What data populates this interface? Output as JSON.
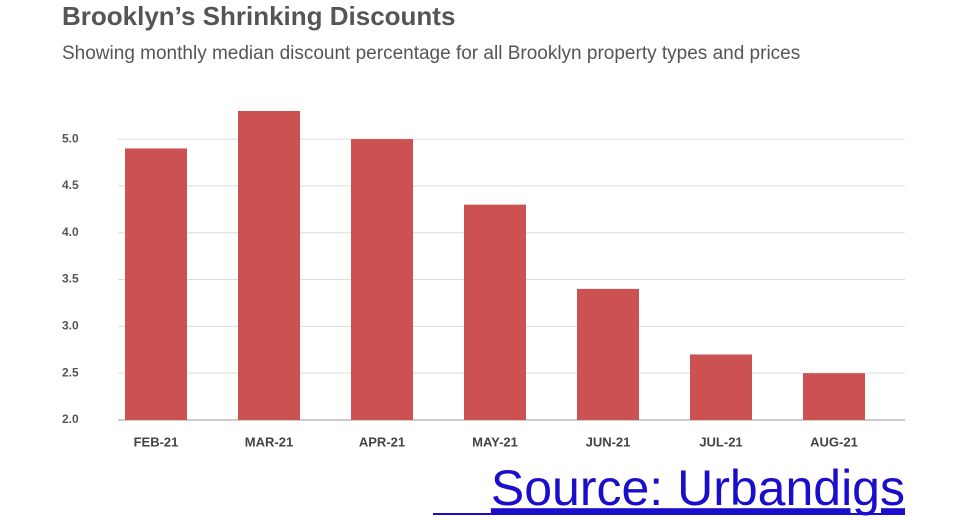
{
  "chart_data": {
    "type": "bar",
    "title": "Brooklyn’s Shrinking Discounts",
    "subtitle": "Showing monthly median discount percentage for all Brooklyn property types and prices",
    "categories": [
      "FEB-21",
      "MAR-21",
      "APR-21",
      "MAY-21",
      "JUN-21",
      "JUL-21",
      "AUG-21"
    ],
    "values": [
      4.9,
      5.3,
      5.0,
      4.3,
      3.4,
      2.7,
      2.5
    ],
    "color": "#cc5252",
    "ylim": [
      2,
      5.3
    ],
    "yticks": [
      {
        "value": 2,
        "label": "2.0"
      },
      2.5,
      {
        "value": 3,
        "label": "3.0"
      },
      3.5,
      {
        "value": 4,
        "label": "4.0"
      },
      4.5,
      {
        "value": 5,
        "label": "5.0"
      }
    ],
    "grid": true,
    "source": "Source: Urbandigs"
  }
}
